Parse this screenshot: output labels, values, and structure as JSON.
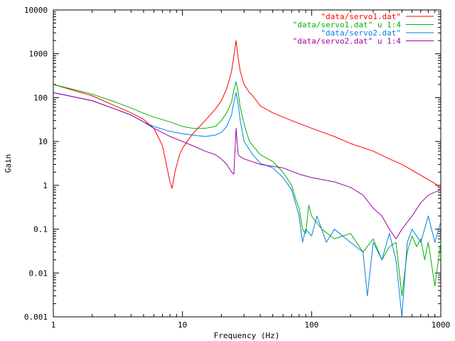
{
  "chart_data": {
    "type": "line",
    "xlabel": "Frequency (Hz)",
    "ylabel": "Gain",
    "xscale": "log",
    "yscale": "log",
    "xlim": [
      1,
      1000
    ],
    "ylim": [
      0.001,
      10000
    ],
    "x_ticks": [
      {
        "value": 1,
        "label": "1"
      },
      {
        "value": 10,
        "label": "10"
      },
      {
        "value": 100,
        "label": "100"
      },
      {
        "value": 1000,
        "label": "1000"
      }
    ],
    "y_ticks": [
      {
        "value": 0.001,
        "label": "0.001"
      },
      {
        "value": 0.01,
        "label": "0.01"
      },
      {
        "value": 0.1,
        "label": "0.1"
      },
      {
        "value": 1,
        "label": "1"
      },
      {
        "value": 10,
        "label": "10"
      },
      {
        "value": 100,
        "label": "100"
      },
      {
        "value": 1000,
        "label": "1000"
      },
      {
        "value": 10000,
        "label": "10000"
      }
    ],
    "grid": false,
    "legend_position": "top-right",
    "series": [
      {
        "name": "\"data/servo1.dat\"",
        "color": "#ff0000",
        "points": [
          [
            1,
            200
          ],
          [
            2,
            110
          ],
          [
            3,
            65
          ],
          [
            4,
            45
          ],
          [
            5,
            32
          ],
          [
            6,
            20
          ],
          [
            7,
            8
          ],
          [
            7.5,
            3
          ],
          [
            8,
            1.2
          ],
          [
            8.3,
            0.85
          ],
          [
            8.8,
            2.2
          ],
          [
            9.5,
            5
          ],
          [
            10,
            7
          ],
          [
            12,
            15
          ],
          [
            15,
            30
          ],
          [
            18,
            55
          ],
          [
            20,
            85
          ],
          [
            22,
            160
          ],
          [
            24,
            400
          ],
          [
            25,
            900
          ],
          [
            26,
            2000
          ],
          [
            27,
            800
          ],
          [
            28,
            400
          ],
          [
            30,
            200
          ],
          [
            33,
            130
          ],
          [
            35,
            110
          ],
          [
            40,
            65
          ],
          [
            50,
            45
          ],
          [
            70,
            30
          ],
          [
            100,
            20
          ],
          [
            150,
            13
          ],
          [
            200,
            9
          ],
          [
            300,
            6
          ],
          [
            400,
            4
          ],
          [
            500,
            3
          ],
          [
            600,
            2.2
          ],
          [
            700,
            1.7
          ],
          [
            800,
            1.35
          ],
          [
            900,
            1.1
          ],
          [
            1000,
            0.85
          ]
        ]
      },
      {
        "name": "\"data/servo1.dat\" u 1:4",
        "color": "#00b000",
        "points": [
          [
            1,
            200
          ],
          [
            2,
            120
          ],
          [
            3,
            80
          ],
          [
            4,
            58
          ],
          [
            5,
            44
          ],
          [
            6,
            36
          ],
          [
            8,
            28
          ],
          [
            10,
            22
          ],
          [
            12,
            20
          ],
          [
            15,
            20
          ],
          [
            18,
            22
          ],
          [
            20,
            30
          ],
          [
            22,
            45
          ],
          [
            24,
            80
          ],
          [
            25,
            150
          ],
          [
            26,
            230
          ],
          [
            27,
            130
          ],
          [
            28,
            60
          ],
          [
            30,
            25
          ],
          [
            33,
            10
          ],
          [
            40,
            5
          ],
          [
            50,
            3.5
          ],
          [
            60,
            2
          ],
          [
            70,
            1
          ],
          [
            75,
            0.5
          ],
          [
            80,
            0.3
          ],
          [
            85,
            0.1
          ],
          [
            90,
            0.08
          ],
          [
            95,
            0.35
          ],
          [
            100,
            0.2
          ],
          [
            120,
            0.1
          ],
          [
            150,
            0.06
          ],
          [
            200,
            0.08
          ],
          [
            250,
            0.03
          ],
          [
            300,
            0.06
          ],
          [
            350,
            0.02
          ],
          [
            400,
            0.04
          ],
          [
            450,
            0.05
          ],
          [
            500,
            0.003
          ],
          [
            550,
            0.03
          ],
          [
            600,
            0.07
          ],
          [
            650,
            0.04
          ],
          [
            700,
            0.06
          ],
          [
            750,
            0.02
          ],
          [
            800,
            0.05
          ],
          [
            900,
            0.005
          ],
          [
            1000,
            0.05
          ]
        ]
      },
      {
        "name": "\"data/servo2.dat\"",
        "color": "#0080e0",
        "points": [
          [
            1,
            130
          ],
          [
            2,
            85
          ],
          [
            3,
            55
          ],
          [
            4,
            40
          ],
          [
            5,
            28
          ],
          [
            6,
            22
          ],
          [
            8,
            17
          ],
          [
            10,
            15
          ],
          [
            12,
            14
          ],
          [
            15,
            13
          ],
          [
            18,
            14
          ],
          [
            20,
            16
          ],
          [
            22,
            22
          ],
          [
            24,
            40
          ],
          [
            25,
            80
          ],
          [
            26,
            130
          ],
          [
            27,
            70
          ],
          [
            28,
            30
          ],
          [
            30,
            10
          ],
          [
            35,
            5
          ],
          [
            40,
            3.2
          ],
          [
            50,
            2.5
          ],
          [
            60,
            1.5
          ],
          [
            70,
            0.8
          ],
          [
            80,
            0.2
          ],
          [
            85,
            0.05
          ],
          [
            90,
            0.1
          ],
          [
            100,
            0.07
          ],
          [
            110,
            0.2
          ],
          [
            130,
            0.05
          ],
          [
            150,
            0.1
          ],
          [
            200,
            0.05
          ],
          [
            250,
            0.03
          ],
          [
            270,
            0.003
          ],
          [
            300,
            0.05
          ],
          [
            350,
            0.02
          ],
          [
            400,
            0.08
          ],
          [
            450,
            0.02
          ],
          [
            500,
            0.001
          ],
          [
            550,
            0.05
          ],
          [
            600,
            0.1
          ],
          [
            700,
            0.05
          ],
          [
            800,
            0.2
          ],
          [
            900,
            0.05
          ],
          [
            1000,
            0.15
          ]
        ]
      },
      {
        "name": "\"data/servo2.dat\" u 1:4",
        "color": "#a000a0",
        "points": [
          [
            1,
            130
          ],
          [
            2,
            85
          ],
          [
            3,
            55
          ],
          [
            4,
            40
          ],
          [
            5,
            28
          ],
          [
            6,
            20
          ],
          [
            8,
            13
          ],
          [
            10,
            10
          ],
          [
            12,
            8
          ],
          [
            15,
            6
          ],
          [
            18,
            5
          ],
          [
            20,
            4
          ],
          [
            22,
            3
          ],
          [
            24,
            2
          ],
          [
            25,
            1.8
          ],
          [
            26,
            20
          ],
          [
            27,
            5
          ],
          [
            28,
            4.5
          ],
          [
            30,
            4
          ],
          [
            40,
            3
          ],
          [
            60,
            2.5
          ],
          [
            80,
            1.8
          ],
          [
            100,
            1.5
          ],
          [
            150,
            1.2
          ],
          [
            200,
            0.9
          ],
          [
            250,
            0.6
          ],
          [
            300,
            0.3
          ],
          [
            350,
            0.2
          ],
          [
            400,
            0.1
          ],
          [
            450,
            0.06
          ],
          [
            500,
            0.1
          ],
          [
            600,
            0.2
          ],
          [
            700,
            0.4
          ],
          [
            800,
            0.6
          ],
          [
            900,
            0.7
          ],
          [
            1000,
            0.8
          ]
        ]
      }
    ]
  }
}
